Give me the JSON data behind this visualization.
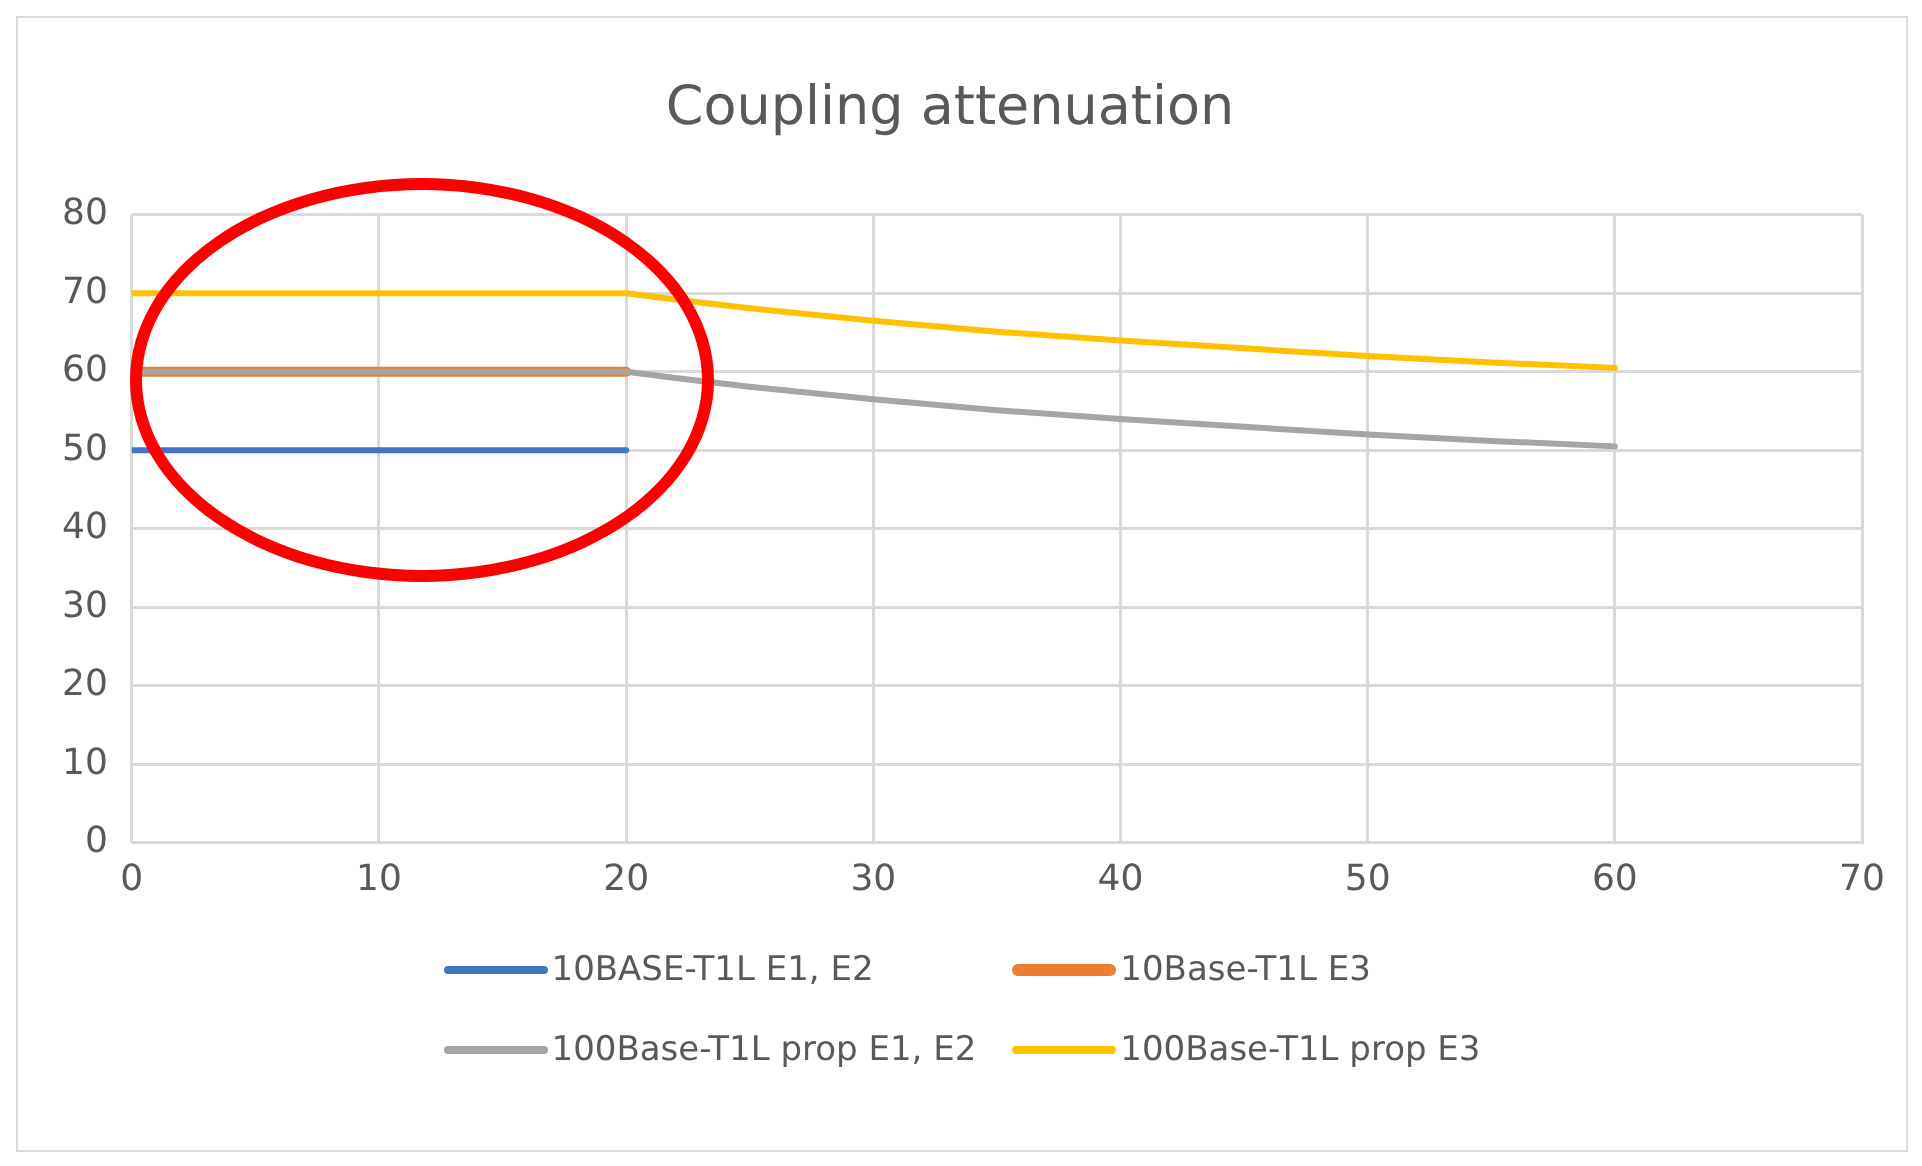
{
  "chart_data": {
    "type": "line",
    "title": "Coupling attenuation",
    "series": [
      {
        "name": "10BASE-T1L E1, E2",
        "color": "#4472c4",
        "x": [
          0,
          20
        ],
        "values": [
          50,
          50
        ]
      },
      {
        "name": "10Base-T1L E3",
        "color": "#ed7d31",
        "x": [
          0,
          20
        ],
        "values": [
          60,
          60
        ]
      },
      {
        "name": "100Base-T1L prop E1, E2",
        "color": "#a5a5a5",
        "x": [
          0,
          20,
          22,
          25,
          30,
          35,
          40,
          45,
          50,
          55,
          60
        ],
        "values": [
          60,
          60,
          59.2,
          58.1,
          56.5,
          55.1,
          54.0,
          53.0,
          52.0,
          51.2,
          50.5
        ]
      },
      {
        "name": "100Base-T1L prop E3",
        "color": "#ffc000",
        "x": [
          0,
          20,
          22,
          25,
          30,
          35,
          40,
          45,
          50,
          55,
          60
        ],
        "values": [
          70,
          70,
          69.2,
          68.1,
          66.5,
          65.1,
          64.0,
          63.0,
          62.0,
          61.2,
          60.5
        ]
      }
    ],
    "xlim": [
      0,
      70
    ],
    "xticks": [
      0,
      10,
      20,
      30,
      40,
      50,
      60,
      70
    ],
    "ylim": [
      0,
      80
    ],
    "yticks": [
      0,
      10,
      20,
      30,
      40,
      50,
      60,
      70,
      80
    ],
    "grid": true,
    "legend": "bottom",
    "marker": "none",
    "line_style": "solid"
  }
}
